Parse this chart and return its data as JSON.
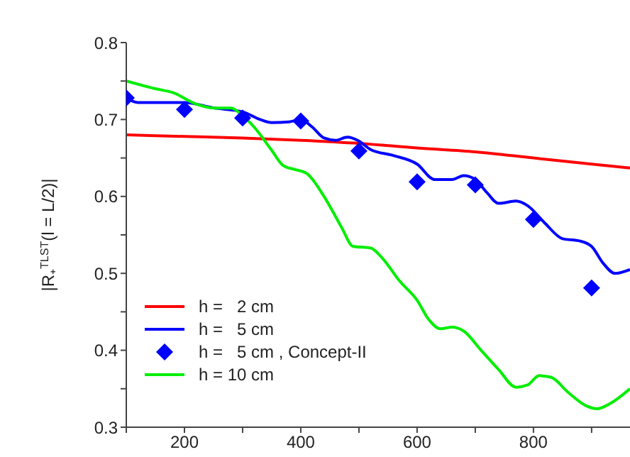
{
  "chart_data": {
    "type": "line",
    "ylabel": "|R₊$^{TLST}$(l = L/2)|",
    "xlim": [
      100,
      966
    ],
    "ylim": [
      0.3,
      0.8
    ],
    "xticks": [
      {
        "value": 100,
        "label": null
      },
      200,
      {
        "value": 300,
        "label": null
      },
      400,
      {
        "value": 500,
        "label": null
      },
      600,
      {
        "value": 700,
        "label": null
      },
      800,
      {
        "value": 900,
        "label": null
      }
    ],
    "yticks": [
      0.3,
      {
        "value": 0.35,
        "label": null
      },
      0.4,
      {
        "value": 0.45,
        "label": null
      },
      0.5,
      {
        "value": 0.55,
        "label": null
      },
      0.6,
      {
        "value": 0.65,
        "label": null
      },
      0.7,
      {
        "value": 0.75,
        "label": null
      },
      0.8
    ],
    "grid": false,
    "legend": "bottom left",
    "marker": "none",
    "line_style": "solid",
    "series": [
      {
        "name": "h =   2 cm",
        "color": "#ff0000",
        "x": [
          100,
          200,
          300,
          400,
          500,
          600,
          700,
          800,
          900,
          966
        ],
        "values": [
          0.68,
          0.678,
          0.676,
          0.673,
          0.669,
          0.663,
          0.658,
          0.65,
          0.642,
          0.637
        ]
      },
      {
        "name": "h =   5 cm",
        "color": "#0000ff",
        "x": [
          100,
          120,
          200,
          250,
          300,
          330,
          350,
          380,
          400,
          420,
          440,
          460,
          480,
          500,
          520,
          560,
          600,
          630,
          660,
          680,
          700,
          720,
          740,
          770,
          790,
          820,
          850,
          880,
          900,
          920,
          940,
          966
        ],
        "values": [
          0.728,
          0.722,
          0.722,
          0.715,
          0.71,
          0.7,
          0.696,
          0.697,
          0.7,
          0.69,
          0.676,
          0.673,
          0.677,
          0.672,
          0.661,
          0.653,
          0.642,
          0.622,
          0.622,
          0.627,
          0.622,
          0.605,
          0.591,
          0.594,
          0.588,
          0.565,
          0.545,
          0.542,
          0.535,
          0.513,
          0.5,
          0.505
        ]
      },
      {
        "name": "h =   5 cm , Concept-II",
        "type": "scatter",
        "marker": "diamond",
        "color": "#0000ff",
        "x": [
          100,
          200,
          300,
          400,
          500,
          600,
          700,
          800,
          900
        ],
        "values": [
          0.728,
          0.713,
          0.702,
          0.698,
          0.659,
          0.619,
          0.615,
          0.57,
          0.481
        ]
      },
      {
        "name": "h = 10 cm",
        "color": "#00ee00",
        "x": [
          100,
          150,
          180,
          220,
          250,
          280,
          300,
          320,
          350,
          370,
          390,
          410,
          440,
          470,
          490,
          520,
          540,
          570,
          600,
          620,
          640,
          660,
          680,
          710,
          740,
          770,
          790,
          810,
          830,
          860,
          890,
          910,
          930,
          966
        ],
        "values": [
          0.75,
          0.74,
          0.735,
          0.72,
          0.715,
          0.715,
          0.705,
          0.69,
          0.66,
          0.64,
          0.635,
          0.63,
          0.6,
          0.56,
          0.535,
          0.533,
          0.52,
          0.49,
          0.465,
          0.44,
          0.428,
          0.43,
          0.425,
          0.4,
          0.375,
          0.352,
          0.355,
          0.367,
          0.365,
          0.345,
          0.328,
          0.324,
          0.33,
          0.35
        ]
      }
    ]
  }
}
